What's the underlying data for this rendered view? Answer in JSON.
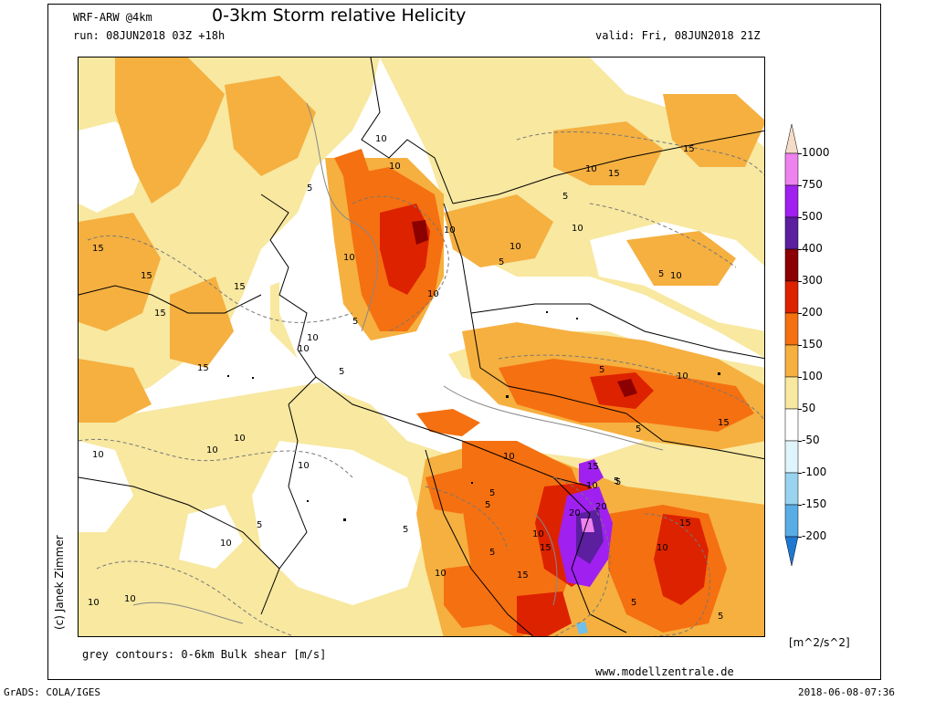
{
  "header": {
    "model": "WRF-ARW @4km",
    "title": "0-3km Storm relative Helicity",
    "run": "run: 08JUN2018 03Z +18h",
    "valid": "valid: Fri, 08JUN2018 21Z"
  },
  "footer": {
    "contours_note": "grey contours: 0-6km Bulk shear [m/s]",
    "website": "www.modellzentrale.de",
    "grads": "GrADS: COLA/IGES",
    "timestamp": "2018-06-08-07:36",
    "credit": "(c) Janek Zimmer"
  },
  "colorbar": {
    "unit": "[m^2/s^2]",
    "levels": [
      {
        "label": "1000",
        "color": "#f5dcc8"
      },
      {
        "label": "750",
        "color": "#ee82ee"
      },
      {
        "label": "500",
        "color": "#a020f0"
      },
      {
        "label": "400",
        "color": "#5b1fa0"
      },
      {
        "label": "300",
        "color": "#8b0000"
      },
      {
        "label": "200",
        "color": "#dd2200"
      },
      {
        "label": "150",
        "color": "#f57010"
      },
      {
        "label": "100",
        "color": "#f5b040"
      },
      {
        "label": "50",
        "color": "#f8e8a0"
      },
      {
        "label": "-50",
        "color": "#ffffff"
      },
      {
        "label": "-100",
        "color": "#b8e6f5"
      },
      {
        "label": "-150",
        "color": "#70c0ea"
      },
      {
        "label": "-200",
        "color": "#3c96dc"
      }
    ],
    "colors": {
      "top_tip": "#f5dcc8",
      "bottom_tip": "#1e78d2",
      "between_50_and_m50": "#ffffff",
      "between_m50_and_m100": "#dff4fb",
      "between_m100_and_m150": "#98d4ef",
      "between_m150_and_m200": "#58aee4"
    }
  },
  "map": {
    "contour_labels": [
      "15",
      "15",
      "15",
      "15",
      "15",
      "10",
      "10",
      "5",
      "10",
      "10",
      "10",
      "10",
      "10",
      "5",
      "5",
      "5",
      "10",
      "15",
      "15",
      "10",
      "5",
      "10",
      "10",
      "5",
      "5",
      "5",
      "10",
      "5",
      "15",
      "10",
      "5",
      "15",
      "15",
      "20",
      "20",
      "10",
      "15",
      "10",
      "10",
      "15",
      "5",
      "10",
      "10",
      "5",
      "5",
      "5",
      "10",
      "10",
      "5",
      "10",
      "10",
      "5",
      "10",
      "10",
      "5"
    ]
  }
}
